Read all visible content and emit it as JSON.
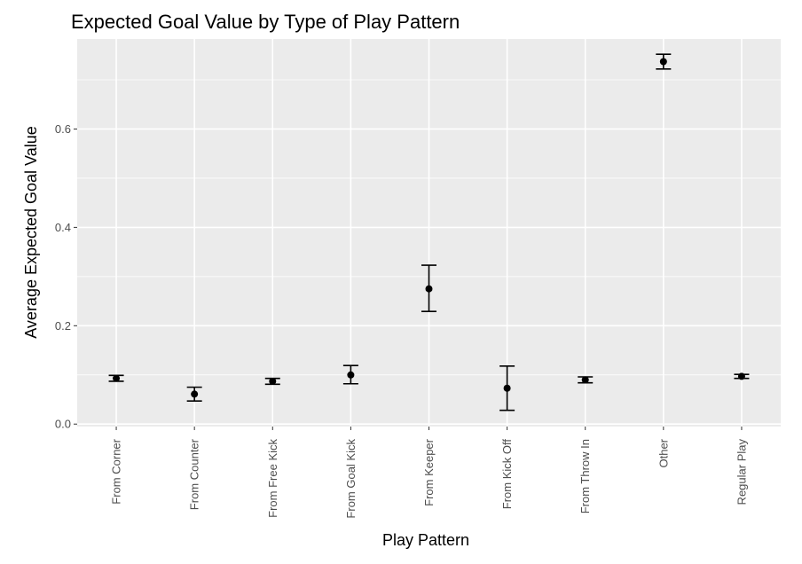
{
  "chart_data": {
    "type": "scatter",
    "title": "Expected Goal Value by Type of Play Pattern",
    "xlabel": "Play Pattern",
    "ylabel": "Average Expected Goal Value",
    "categories": [
      "From Corner",
      "From Counter",
      "From Free Kick",
      "From Goal Kick",
      "From Keeper",
      "From Kick Off",
      "From Throw In",
      "Other",
      "Regular Play"
    ],
    "values": [
      0.093,
      0.061,
      0.087,
      0.1,
      0.275,
      0.073,
      0.09,
      0.737,
      0.097
    ],
    "error_low": [
      0.087,
      0.047,
      0.081,
      0.082,
      0.229,
      0.028,
      0.084,
      0.722,
      0.093
    ],
    "error_high": [
      0.099,
      0.075,
      0.093,
      0.119,
      0.323,
      0.118,
      0.096,
      0.752,
      0.101
    ],
    "yticks": [
      "0.0",
      "0.2",
      "0.4",
      "0.6"
    ],
    "ylim": [
      -0.005,
      0.783
    ],
    "grid": true,
    "colors": {
      "panel": "#ebebeb",
      "grid": "#ffffff",
      "marks": "#000000"
    }
  }
}
